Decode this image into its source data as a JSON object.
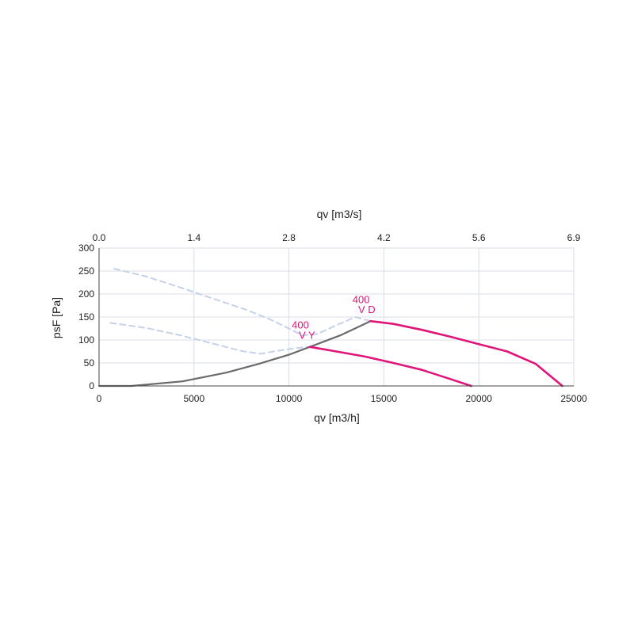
{
  "chart_data": {
    "type": "line",
    "title": "",
    "xlabel": "qv [m3/h]",
    "ylabel": "psF [Pa]",
    "x2label": "qv [m3/s]",
    "xlim": [
      0,
      25000
    ],
    "ylim": [
      0,
      300
    ],
    "x_ticks": [
      0,
      5000,
      10000,
      15000,
      20000,
      25000
    ],
    "y_ticks": [
      0,
      50,
      100,
      150,
      200,
      250,
      300
    ],
    "x2_tick_labels": [
      "0.0",
      "1.4",
      "2.8",
      "4.2",
      "5.6",
      "6.9"
    ],
    "grid": true,
    "colors": {
      "fan_curve": "#e0157a",
      "system_curve": "#6b6b6b",
      "stall_curve": "#c6d2e8"
    },
    "series": [
      {
        "role": "fan_curve_Y",
        "style": "solid",
        "color": "#e0157a",
        "x": [
          11100,
          12500,
          14000,
          15500,
          17000,
          18500,
          19600
        ],
        "y": [
          85,
          75,
          64,
          50,
          35,
          15,
          0
        ]
      },
      {
        "role": "fan_curve_D",
        "style": "solid",
        "color": "#e0157a",
        "x": [
          14300,
          15500,
          17000,
          18500,
          20000,
          21500,
          23000,
          24400
        ],
        "y": [
          141,
          135,
          122,
          107,
          91,
          75,
          48,
          0
        ]
      },
      {
        "role": "system_curve",
        "style": "solid",
        "color": "#6b6b6b",
        "x": [
          0,
          1700,
          4400,
          6700,
          8400,
          10000,
          11100,
          12700,
          14300
        ],
        "y": [
          0,
          0,
          10,
          29,
          48,
          68,
          85,
          110,
          141
        ]
      },
      {
        "role": "stall_curve_D",
        "style": "dashed",
        "color": "#c6d2e8",
        "x": [
          800,
          2500,
          4300,
          6000,
          7800,
          9000,
          10000,
          10700,
          11500,
          12500,
          13500,
          14300
        ],
        "y": [
          255,
          238,
          214,
          190,
          165,
          145,
          125,
          110,
          113,
          132,
          150,
          141
        ]
      },
      {
        "role": "stall_curve_Y",
        "style": "dashed",
        "color": "#c6d2e8",
        "x": [
          600,
          2500,
          4300,
          6000,
          7500,
          8500,
          9500,
          10300,
          11100
        ],
        "y": [
          137,
          126,
          110,
          92,
          76,
          70,
          77,
          82,
          85
        ]
      }
    ],
    "annotations": [
      {
        "text": "400",
        "x": 10600,
        "y": 125
      },
      {
        "text": "V Y",
        "x": 10950,
        "y": 103
      },
      {
        "text": "400",
        "x": 13800,
        "y": 180
      },
      {
        "text": "V D",
        "x": 14100,
        "y": 159
      }
    ]
  }
}
